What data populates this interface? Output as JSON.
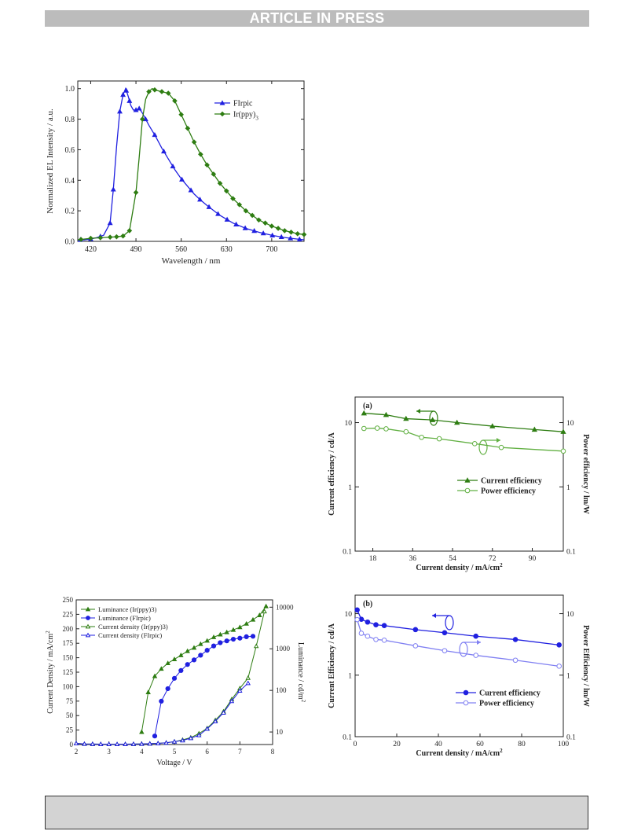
{
  "header": {
    "banner_text": "ARTICLE IN PRESS"
  },
  "colors": {
    "blue": "#2020e0",
    "green": "#2e7d12",
    "light_green": "#62b043",
    "lavender": "#8080f2",
    "banner_bg": "#bcbcbc",
    "footer_bg": "#d3d3d3"
  },
  "chart_data": [
    {
      "id": "el-spectrum",
      "type": "line",
      "xlabel": "Wavelength / nm",
      "ylabel": "Normalized EL Intensity / a.u.",
      "xlim": [
        400,
        750
      ],
      "ylim": [
        0,
        1.05
      ],
      "xticks": [
        420,
        490,
        560,
        630,
        700
      ],
      "yticks": [
        0.0,
        0.2,
        0.4,
        0.6,
        0.8,
        1.0
      ],
      "tick_labels_x": [
        "420",
        "490",
        "560",
        "630",
        "700"
      ],
      "tick_labels_y": [
        "0.0",
        "0.2",
        "0.4",
        "0.6",
        "0.8",
        "1.0"
      ],
      "legend": "top-right",
      "series": [
        {
          "name": "FIrpic",
          "color": "#2020e0",
          "marker": "triangle",
          "x": [
            400,
            410,
            420,
            430,
            440,
            450,
            455,
            460,
            465,
            470,
            474,
            478,
            482,
            486,
            490,
            495,
            500,
            510,
            520,
            530,
            540,
            550,
            560,
            570,
            580,
            590,
            600,
            620,
            640,
            660,
            680,
            700,
            720,
            740,
            750
          ],
          "y": [
            0.01,
            0.01,
            0.015,
            0.025,
            0.04,
            0.12,
            0.34,
            0.62,
            0.85,
            0.96,
            1.0,
            0.95,
            0.89,
            0.86,
            0.86,
            0.87,
            0.84,
            0.76,
            0.69,
            0.61,
            0.54,
            0.47,
            0.41,
            0.36,
            0.31,
            0.27,
            0.235,
            0.17,
            0.12,
            0.085,
            0.06,
            0.04,
            0.025,
            0.015,
            0.01
          ],
          "marker_x": [
            404,
            420,
            435,
            450,
            455,
            465,
            470,
            475,
            480,
            490,
            495,
            505,
            519,
            533,
            547,
            561,
            575,
            589,
            603,
            617,
            631,
            645,
            659,
            673,
            687,
            701,
            715,
            729,
            743
          ]
        },
        {
          "name": "Ir(ppy)3",
          "color": "#2e7d12",
          "marker": "diamond",
          "x": [
            400,
            420,
            440,
            460,
            470,
            480,
            490,
            495,
            500,
            505,
            510,
            515,
            520,
            530,
            540,
            550,
            560,
            570,
            580,
            590,
            600,
            620,
            640,
            660,
            680,
            700,
            720,
            740,
            750
          ],
          "y": [
            0.01,
            0.02,
            0.025,
            0.03,
            0.035,
            0.07,
            0.32,
            0.55,
            0.8,
            0.93,
            0.98,
            1.0,
            0.99,
            0.98,
            0.97,
            0.92,
            0.83,
            0.74,
            0.65,
            0.57,
            0.5,
            0.38,
            0.28,
            0.2,
            0.14,
            0.1,
            0.07,
            0.05,
            0.045
          ],
          "marker_x": [
            405,
            420,
            435,
            450,
            460,
            470,
            480,
            490,
            500,
            510,
            519,
            530,
            540,
            550,
            560,
            570,
            580,
            590,
            600,
            610,
            620,
            630,
            640,
            650,
            660,
            670,
            680,
            690,
            700,
            710,
            720,
            730,
            740,
            750
          ]
        }
      ]
    },
    {
      "id": "jvl",
      "type": "line",
      "xlabel": "Voltage / V",
      "ylabel": "Current Density / mA/cm",
      "ylabel_sup": "2",
      "y2label": "Luminance / cd/m",
      "y2label_sup": "2",
      "xlim": [
        2,
        8
      ],
      "ylim": [
        0,
        250
      ],
      "y2lim": [
        5,
        15000
      ],
      "y2scale": "log",
      "xticks": [
        2,
        3,
        4,
        5,
        6,
        7,
        8
      ],
      "yticks": [
        0,
        25,
        50,
        75,
        100,
        125,
        150,
        175,
        200,
        225,
        250
      ],
      "tick_labels_x": [
        "2",
        "3",
        "4",
        "5",
        "6",
        "7",
        "8"
      ],
      "tick_labels_y": [
        "0",
        "25",
        "50",
        "75",
        "100",
        "125",
        "150",
        "175",
        "200",
        "225",
        "250"
      ],
      "y2ticks": [
        10,
        100,
        1000,
        10000
      ],
      "tick_labels_y2": [
        "10",
        "100",
        "1000",
        "10000"
      ],
      "legend": "top-left",
      "series": [
        {
          "name": "Luminance (Ir(ppy)3)",
          "axis": "y2",
          "color": "#2e7d12",
          "marker": "triangle",
          "x": [
            4.0,
            4.2,
            4.4,
            4.6,
            4.8,
            5.0,
            5.2,
            5.4,
            5.6,
            5.8,
            6.0,
            6.2,
            6.4,
            6.6,
            6.8,
            7.0,
            7.2,
            7.4,
            7.6,
            7.8
          ],
          "y": [
            10,
            90,
            220,
            330,
            450,
            560,
            700,
            880,
            1060,
            1300,
            1560,
            1900,
            2200,
            2500,
            2850,
            3300,
            4000,
            5000,
            6400,
            10500
          ]
        },
        {
          "name": "Luminance (FIrpic)",
          "axis": "y2",
          "color": "#2020e0",
          "marker": "circle",
          "x": [
            4.4,
            4.6,
            4.8,
            5.0,
            5.2,
            5.4,
            5.6,
            5.8,
            6.0,
            6.2,
            6.4,
            6.6,
            6.8,
            7.0,
            7.2,
            7.4
          ],
          "y": [
            8,
            55,
            110,
            195,
            300,
            420,
            540,
            700,
            920,
            1170,
            1400,
            1550,
            1700,
            1800,
            1950,
            2000
          ]
        },
        {
          "name": "Current density (Ir(ppy)3)",
          "axis": "y",
          "color": "#2e7d12",
          "marker": "open-triangle",
          "x": [
            2.0,
            2.25,
            2.5,
            2.75,
            3.0,
            3.25,
            3.5,
            3.75,
            4.0,
            4.25,
            4.5,
            4.75,
            5.0,
            5.25,
            5.5,
            5.75,
            6.0,
            6.25,
            6.5,
            6.75,
            7.0,
            7.25,
            7.5,
            7.75
          ],
          "y": [
            2,
            1,
            0.8,
            0.6,
            0.5,
            0.5,
            0.6,
            0.8,
            1,
            1.5,
            2,
            3,
            5,
            8,
            12,
            19,
            28,
            42,
            57,
            78,
            97,
            115,
            170,
            230
          ]
        },
        {
          "name": "Current density (FIrpic)",
          "axis": "y",
          "color": "#2020e0",
          "marker": "open-triangle",
          "x": [
            2.0,
            2.25,
            2.5,
            2.75,
            3.0,
            3.25,
            3.5,
            3.75,
            4.0,
            4.25,
            4.5,
            4.75,
            5.0,
            5.25,
            5.5,
            5.75,
            6.0,
            6.25,
            6.5,
            6.75,
            7.0,
            7.25
          ],
          "y": [
            2,
            1,
            0.8,
            0.6,
            0.5,
            0.5,
            0.6,
            0.8,
            1,
            1.5,
            2,
            3,
            5,
            7,
            11,
            16,
            27,
            40,
            55,
            75,
            93,
            106
          ]
        }
      ]
    },
    {
      "id": "eff-a",
      "type": "line",
      "panel_label": "(a)",
      "xlabel": "Current density / mA/cm",
      "xlabel_sup": "2",
      "ylabel": "Current efficiency / cd/A",
      "y2label": "Power efficiency / lm/W",
      "xlim": [
        10,
        104
      ],
      "ylim": [
        0.1,
        25
      ],
      "yscale": "log",
      "xticks": [
        18,
        36,
        54,
        72,
        90
      ],
      "tick_labels_x": [
        "18",
        "36",
        "54",
        "72",
        "90"
      ],
      "yticks": [
        0.1,
        1,
        10
      ],
      "tick_labels_y": [
        "0.1",
        "1",
        "10"
      ],
      "tick_labels_y2": [
        "0.1",
        "1",
        "10"
      ],
      "legend": "center-right",
      "series": [
        {
          "name": "Current efficiency",
          "color": "#2e7d12",
          "marker": "triangle",
          "x": [
            14,
            24,
            33,
            45,
            56,
            72,
            91,
            104
          ],
          "y": [
            14,
            13.2,
            11.5,
            11,
            10,
            8.8,
            7.8,
            7.2
          ]
        },
        {
          "name": "Power efficiency",
          "color": "#62b043",
          "marker": "open-circle",
          "x": [
            14,
            20,
            24,
            33,
            40,
            48,
            64,
            76,
            104
          ],
          "y": [
            8.1,
            8.2,
            8.0,
            7.2,
            5.9,
            5.6,
            4.7,
            4.1,
            3.6
          ]
        }
      ]
    },
    {
      "id": "eff-b",
      "type": "line",
      "panel_label": "(b)",
      "xlabel": "Current density / mA/cm",
      "xlabel_sup": "2",
      "ylabel": "Current Efficiency / cd/A",
      "y2label": "Power Efficiency / lm/W",
      "xlim": [
        0,
        100
      ],
      "ylim": [
        0.1,
        20
      ],
      "yscale": "log",
      "xticks": [
        0,
        20,
        40,
        60,
        80,
        100
      ],
      "tick_labels_x": [
        "0",
        "20",
        "40",
        "60",
        "80",
        "100"
      ],
      "yticks": [
        0.1,
        1,
        10
      ],
      "tick_labels_y": [
        "0.1",
        "1",
        "10"
      ],
      "tick_labels_y2": [
        "0.1",
        "1",
        "10"
      ],
      "legend": "bottom-right",
      "series": [
        {
          "name": "Current efficiency",
          "color": "#2020e0",
          "marker": "circle",
          "x": [
            1,
            3,
            6,
            10,
            14,
            29,
            43,
            58,
            77,
            98
          ],
          "y": [
            11.5,
            8.1,
            7.3,
            6.6,
            6.4,
            5.5,
            4.9,
            4.3,
            3.8,
            3.1
          ]
        },
        {
          "name": "Power efficiency",
          "color": "#8080f2",
          "marker": "open-circle",
          "x": [
            1,
            3,
            6,
            10,
            14,
            29,
            43,
            58,
            77,
            98
          ],
          "y": [
            8,
            4.8,
            4.3,
            3.8,
            3.7,
            3.0,
            2.5,
            2.1,
            1.75,
            1.4
          ]
        }
      ]
    }
  ]
}
